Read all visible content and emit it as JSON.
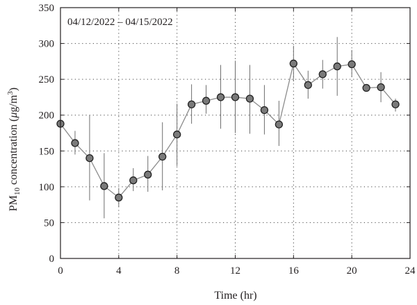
{
  "chart_data": {
    "type": "line",
    "title": "",
    "annotation": "04/12/2022 – 04/15/2022",
    "xlabel": "Time (hr)",
    "ylabel": {
      "prefix": "PM",
      "prefix_sub": "10",
      "middle": " concentration (",
      "mu": "μ",
      "unit": "g/m",
      "unit_sup": "3",
      "suffix": ")"
    },
    "xlim": [
      0,
      24
    ],
    "ylim": [
      0,
      350
    ],
    "xticks": [
      0,
      4,
      8,
      12,
      16,
      20,
      24
    ],
    "yticks": [
      0,
      50,
      100,
      150,
      200,
      250,
      300,
      350
    ],
    "grid": "dotted",
    "legend": "none",
    "colors": {
      "line": "#8c8c8c",
      "marker_fill": "#7a7a7a",
      "marker_edge": "#222222",
      "error_bar": "#6d6d6d",
      "frame": "#231f20",
      "grid": "#444444"
    },
    "series": [
      {
        "x": [
          0,
          1,
          2,
          3,
          4,
          5,
          6,
          7,
          8,
          9,
          10,
          11,
          12,
          13,
          14,
          15,
          16,
          17,
          18,
          19,
          20,
          21,
          22,
          23
        ],
        "y": [
          188,
          161,
          140,
          101,
          85,
          109,
          117,
          142,
          173,
          215,
          220,
          225,
          225,
          223,
          207,
          187,
          272,
          242,
          257,
          268,
          271,
          238,
          239,
          215
        ],
        "err_low": [
          null,
          145,
          81,
          56,
          72,
          94,
          93,
          95,
          129,
          188,
          202,
          181,
          175,
          174,
          173,
          157,
          247,
          223,
          237,
          227,
          253,
          null,
          218,
          205
        ],
        "err_high": [
          null,
          178,
          200,
          147,
          98,
          126,
          143,
          190,
          216,
          243,
          242,
          270,
          276,
          270,
          242,
          220,
          297,
          262,
          277,
          309,
          291,
          null,
          260,
          223
        ]
      }
    ]
  }
}
